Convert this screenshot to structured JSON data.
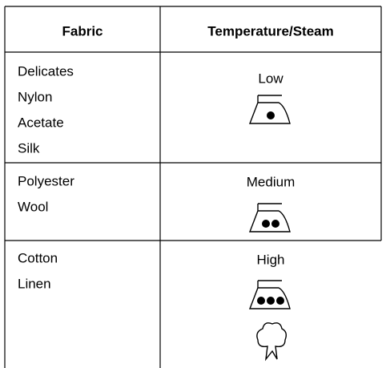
{
  "table": {
    "header": [
      "Fabric",
      "Temperature/Steam"
    ],
    "rows": [
      {
        "fabrics": [
          "Delicates",
          "Nylon",
          "Acetate",
          "Silk"
        ],
        "setting": "Low"
      },
      {
        "fabrics": [
          "Polyester",
          "Wool"
        ],
        "setting": "Medium"
      },
      {
        "fabrics": [
          "Cotton",
          "Linen"
        ],
        "setting": "High"
      }
    ]
  }
}
